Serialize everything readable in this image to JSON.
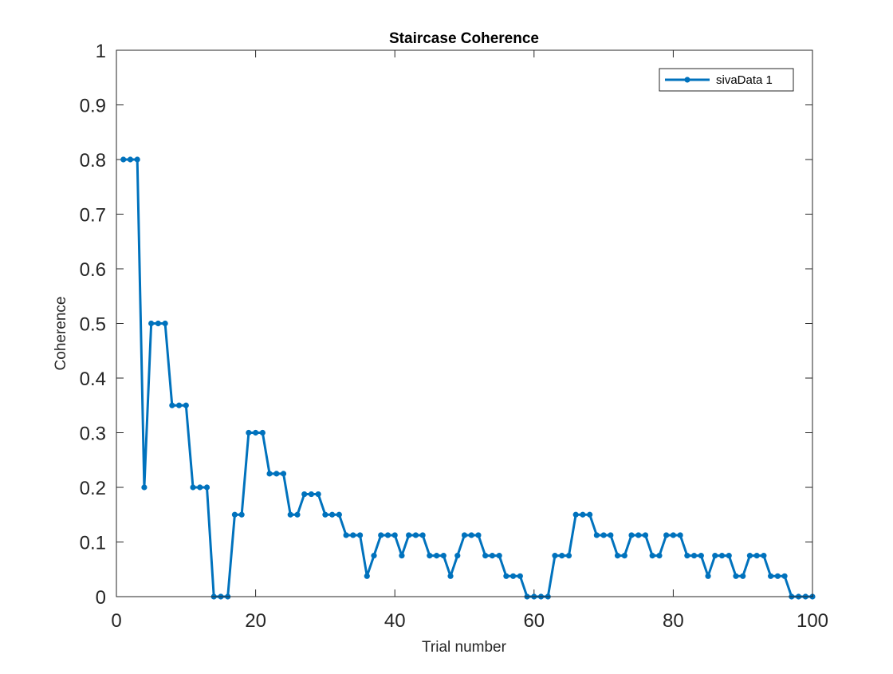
{
  "chart_data": {
    "type": "line",
    "title": "Staircase Coherence",
    "xlabel": "Trial number",
    "ylabel": "Coherence",
    "xlim": [
      0,
      100
    ],
    "ylim": [
      0,
      1
    ],
    "xticks": [
      0,
      20,
      40,
      60,
      80,
      100
    ],
    "xtick_labels": [
      "0",
      "20",
      "40",
      "60",
      "80",
      "100"
    ],
    "yticks": [
      0,
      0.1,
      0.2,
      0.3,
      0.4,
      0.5,
      0.6,
      0.7,
      0.8,
      0.9,
      1
    ],
    "ytick_labels": [
      "0",
      "0.1",
      "0.2",
      "0.3",
      "0.4",
      "0.5",
      "0.6",
      "0.7",
      "0.8",
      "0.9",
      "1"
    ],
    "grid": false,
    "legend": {
      "position": "top-right",
      "entries": [
        "sivaData 1"
      ]
    },
    "series": [
      {
        "name": "sivaData 1",
        "color": "#0072BD",
        "marker": "circle",
        "x": [
          1,
          2,
          3,
          4,
          5,
          6,
          7,
          8,
          9,
          10,
          11,
          12,
          13,
          14,
          15,
          16,
          17,
          18,
          19,
          20,
          21,
          22,
          23,
          24,
          25,
          26,
          27,
          28,
          29,
          30,
          31,
          32,
          33,
          34,
          35,
          36,
          37,
          38,
          39,
          40,
          41,
          42,
          43,
          44,
          45,
          46,
          47,
          48,
          49,
          50,
          51,
          52,
          53,
          54,
          55,
          56,
          57,
          58,
          59,
          60,
          61,
          62,
          63,
          64,
          65,
          66,
          67,
          68,
          69,
          70,
          71,
          72,
          73,
          74,
          75,
          76,
          77,
          78,
          79,
          80,
          81,
          82,
          83,
          84,
          85,
          86,
          87,
          88,
          89,
          90,
          91,
          92,
          93,
          94,
          95,
          96,
          97,
          98,
          99,
          100
        ],
        "values": [
          0.8,
          0.8,
          0.8,
          0.2,
          0.5,
          0.5,
          0.5,
          0.35,
          0.35,
          0.35,
          0.2,
          0.2,
          0.2,
          0,
          0,
          0,
          0.15,
          0.15,
          0.3,
          0.3,
          0.3,
          0.225,
          0.225,
          0.225,
          0.15,
          0.15,
          0.1875,
          0.1875,
          0.1875,
          0.15,
          0.15,
          0.15,
          0.1125,
          0.1125,
          0.1125,
          0.0375,
          0.075,
          0.1125,
          0.1125,
          0.1125,
          0.075,
          0.1125,
          0.1125,
          0.1125,
          0.075,
          0.075,
          0.075,
          0.0375,
          0.075,
          0.1125,
          0.1125,
          0.1125,
          0.075,
          0.075,
          0.075,
          0.0375,
          0.0375,
          0.0375,
          0,
          0,
          0,
          0,
          0.075,
          0.075,
          0.075,
          0.15,
          0.15,
          0.15,
          0.1125,
          0.1125,
          0.1125,
          0.075,
          0.075,
          0.1125,
          0.1125,
          0.1125,
          0.075,
          0.075,
          0.1125,
          0.1125,
          0.1125,
          0.075,
          0.075,
          0.075,
          0.0375,
          0.075,
          0.075,
          0.075,
          0.0375,
          0.0375,
          0.075,
          0.075,
          0.075,
          0.0375,
          0.0375,
          0.0375,
          0,
          0,
          0,
          0
        ]
      }
    ]
  }
}
